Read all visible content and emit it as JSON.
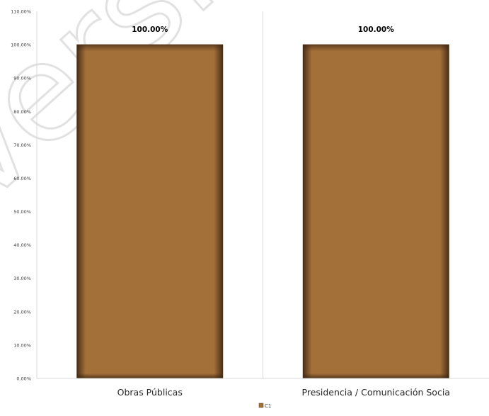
{
  "watermark": "Versión",
  "chart_data": {
    "type": "bar",
    "categories": [
      "Obras Públicas",
      "Presidencia / Comunicación Socia"
    ],
    "series": [
      {
        "name": "C1",
        "values": [
          100.0,
          100.0
        ],
        "color": "#a4703a"
      }
    ],
    "data_labels": [
      "100.00%",
      "100.00%"
    ],
    "ylim": [
      0,
      110
    ],
    "yticks": [
      0,
      10,
      20,
      30,
      40,
      50,
      60,
      70,
      80,
      90,
      100,
      110
    ],
    "ytick_labels": [
      "0.00%",
      "10.00%",
      "20.00%",
      "30.00%",
      "40.00%",
      "50.00%",
      "60.00%",
      "70.00%",
      "80.00%",
      "90.00%",
      "100.00%",
      "110.00%"
    ],
    "title": "",
    "xlabel": "",
    "ylabel": "",
    "grid": false,
    "category_separators": true,
    "legend_position": "bottom-center",
    "colors": {
      "bar_fill": "#a4703a",
      "bar_edge": "#5a3a1a",
      "axis": "#d9d9d9"
    }
  }
}
